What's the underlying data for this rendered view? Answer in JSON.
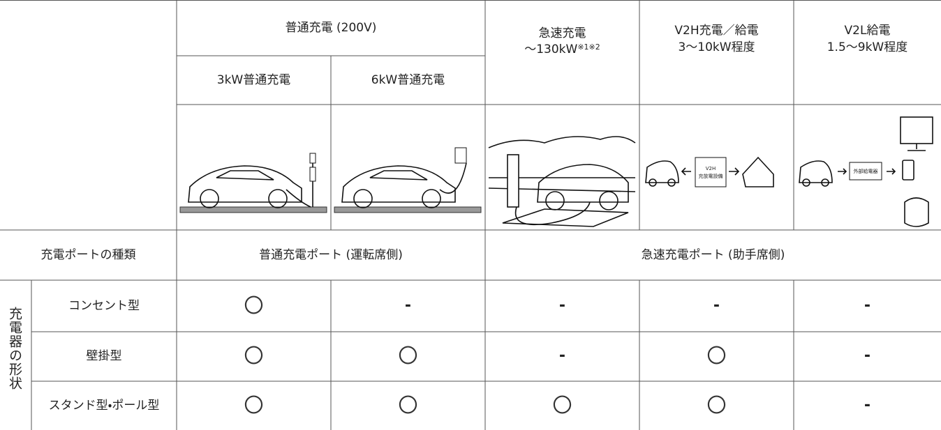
{
  "table": {
    "header": {
      "normal": "普通充電 (200V)",
      "normal_3kw": "3kW普通充電",
      "normal_6kw": "6kW普通充電",
      "quick": {
        "line1": "急速充電",
        "line2": "～130kW",
        "note": "※1※2"
      },
      "v2h": {
        "line1": "V2H充電／給電",
        "line2": "3～10kW程度"
      },
      "v2l": {
        "line1": "V2L給電",
        "line2": "1.5～9kW程度"
      }
    },
    "illustrations": {
      "v2h_box": {
        "line1": "V2H",
        "line2": "充放電設備"
      },
      "v2l_box": "外部給電器"
    },
    "port_row": {
      "label": "充電ポートの種類",
      "normal": "普通充電ポート (運転席側)",
      "quick": "急速充電ポート (助手席側)"
    },
    "shape_group": "充電器の形状",
    "rows": [
      {
        "label": "コンセント型",
        "cells": [
          "〇",
          "-",
          "-",
          "-",
          "-"
        ]
      },
      {
        "label": "壁掛型",
        "cells": [
          "〇",
          "〇",
          "-",
          "〇",
          "-"
        ]
      },
      {
        "label": "スタンド型・ポール型",
        "cells": [
          "〇",
          "〇",
          "〇",
          "〇",
          "-"
        ]
      }
    ]
  }
}
